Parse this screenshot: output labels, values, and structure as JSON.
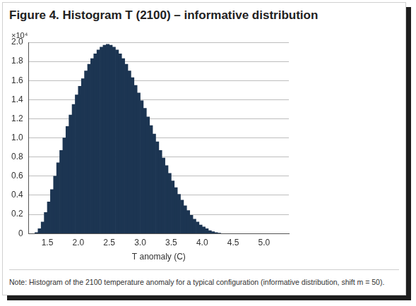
{
  "chart_data": {
    "type": "histogram",
    "title": "Figure 4. Histogram T (2100) – informative distribution",
    "annotation": "×10⁴",
    "xlabel": "T anomaly (C)",
    "note": "Note: Histogram of the 2100 temperature anomaly for a typical configuration (informative distribution, shift m = 50).",
    "bins": [
      1.3,
      1.35,
      1.4,
      1.45,
      1.5,
      1.55,
      1.6,
      1.65,
      1.7,
      1.75,
      1.8,
      1.85,
      1.9,
      1.95,
      2.0,
      2.05,
      2.1,
      2.15,
      2.2,
      2.25,
      2.3,
      2.35,
      2.4,
      2.45,
      2.5,
      2.55,
      2.6,
      2.65,
      2.7,
      2.75,
      2.8,
      2.85,
      2.9,
      2.95,
      3.0,
      3.05,
      3.1,
      3.15,
      3.2,
      3.25,
      3.3,
      3.35,
      3.4,
      3.45,
      3.5,
      3.55,
      3.6,
      3.65,
      3.7,
      3.75,
      3.8,
      3.85,
      3.9,
      3.95,
      4.0,
      4.05,
      4.1,
      4.15,
      4.2,
      4.25,
      4.3
    ],
    "values": [
      0.01,
      0.05,
      0.12,
      0.22,
      0.33,
      0.46,
      0.6,
      0.74,
      0.87,
      1.0,
      1.12,
      1.24,
      1.35,
      1.45,
      1.54,
      1.62,
      1.7,
      1.77,
      1.83,
      1.88,
      1.92,
      1.95,
      1.97,
      1.98,
      1.97,
      1.95,
      1.92,
      1.88,
      1.83,
      1.77,
      1.7,
      1.63,
      1.55,
      1.47,
      1.39,
      1.31,
      1.22,
      1.13,
      1.04,
      0.96,
      0.87,
      0.79,
      0.71,
      0.63,
      0.55,
      0.48,
      0.41,
      0.35,
      0.29,
      0.24,
      0.19,
      0.15,
      0.12,
      0.09,
      0.07,
      0.05,
      0.03,
      0.02,
      0.01,
      0.005
    ],
    "color": "#1c3552",
    "xlim": [
      1.2,
      5.4
    ],
    "xticks": [
      1.5,
      {
        "value": 2,
        "label": "2.0"
      },
      2.5,
      {
        "value": 3,
        "label": "3.0"
      },
      3.5,
      {
        "value": 4,
        "label": "4.0"
      },
      4.5,
      {
        "value": 5,
        "label": "5.0"
      }
    ],
    "ylim": [
      0,
      2
    ],
    "yticks": [
      0,
      0.2,
      0.4,
      0.6,
      0.8,
      {
        "value": 1,
        "label": "1.0"
      },
      1.2,
      1.4,
      1.6,
      1.8,
      {
        "value": 2,
        "label": "2.0"
      }
    ],
    "grid": true
  }
}
